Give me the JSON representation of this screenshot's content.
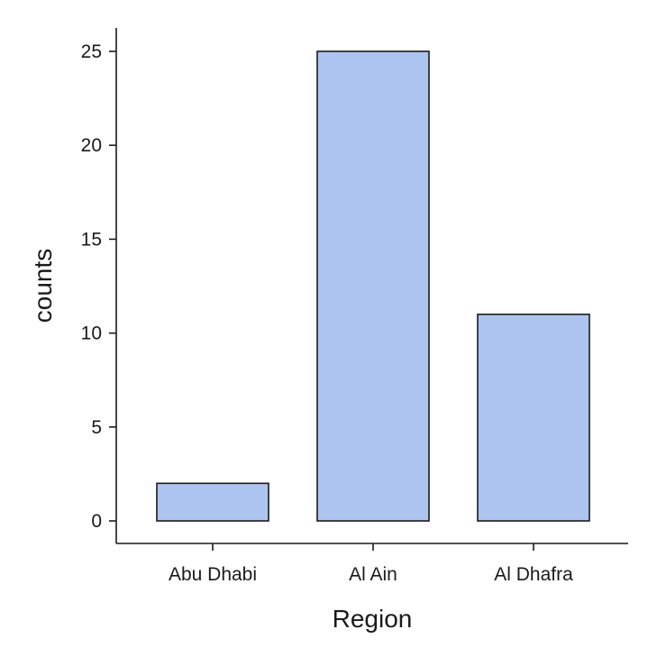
{
  "chart_data": {
    "type": "bar",
    "categories": [
      "Abu Dhabi",
      "Al Ain",
      "Al Dhafra"
    ],
    "values": [
      2,
      25,
      11
    ],
    "xlabel": "Region",
    "ylabel": "counts",
    "ylim": [
      0,
      25
    ],
    "yticks": [
      0,
      5,
      10,
      15,
      20,
      25
    ],
    "ytick_labels": [
      "0",
      "5",
      "10",
      "15",
      "20",
      "25"
    ],
    "grid": false,
    "bar_color": "#aec4f0",
    "edge_color": "#1a1a1a"
  }
}
